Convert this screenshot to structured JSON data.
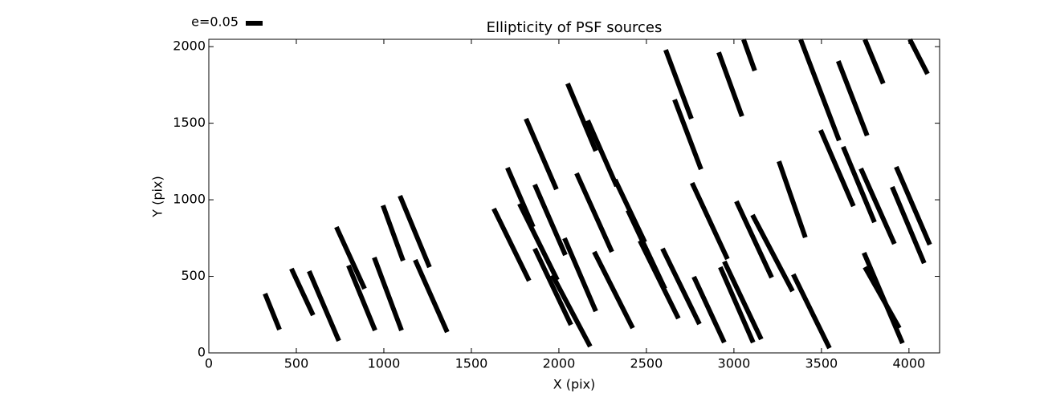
{
  "chart_data": {
    "type": "segments",
    "title": "Ellipticity of PSF sources",
    "x_label": "X (pix)",
    "y_label": "Y (pix)",
    "legend_label": "e=0.05",
    "color": "#000000",
    "x_start": [
      321,
      472,
      573,
      729,
      798,
      945,
      995,
      1092,
      1179,
      1628,
      1706,
      1812,
      1775,
      1862,
      1862,
      1963,
      2032,
      2050,
      2101,
      2165,
      2202,
      2321,
      2394,
      2463,
      2592,
      2610,
      2661,
      2761,
      2771,
      2913,
      2922,
      2945,
      3014,
      3106,
      3055,
      3257,
      3339,
      3381,
      3495,
      3596,
      3624,
      3725,
      3748,
      3743,
      3748,
      3904,
      3927,
      4005
    ],
    "y_start": [
      387,
      550,
      534,
      822,
      571,
      623,
      963,
      1026,
      607,
      942,
      1209,
      1529,
      974,
      1099,
      681,
      508,
      749,
      1759,
      1173,
      1518,
      660,
      1131,
      932,
      733,
      681,
      1979,
      1654,
      1110,
      497,
      1963,
      560,
      597,
      990,
      901,
      2047,
      1251,
      513,
      2047,
      1455,
      1906,
      1346,
      1204,
      2047,
      654,
      560,
      1084,
      1215,
      2047
    ],
    "x_end": [
      404,
      596,
      743,
      890,
      950,
      1101,
      1110,
      1261,
      1362,
      1830,
      1853,
      1986,
      1991,
      2037,
      2069,
      2179,
      2211,
      2211,
      2303,
      2330,
      2422,
      2491,
      2606,
      2683,
      2803,
      2757,
      2812,
      2963,
      2945,
      3046,
      3110,
      3156,
      3216,
      3335,
      3119,
      3408,
      3546,
      3601,
      3683,
      3761,
      3803,
      3917,
      3853,
      3963,
      3945,
      4087,
      4119,
      4106
    ],
    "y_end": [
      152,
      246,
      79,
      419,
      147,
      147,
      602,
      560,
      136,
      471,
      822,
      1068,
      476,
      639,
      183,
      42,
      272,
      1319,
      660,
      1089,
      162,
      723,
      419,
      225,
      188,
      1529,
      1199,
      613,
      68,
      1545,
      68,
      89,
      492,
      403,
      1843,
      754,
      31,
      1387,
      958,
      1419,
      853,
      712,
      1759,
      63,
      162,
      586,
      707,
      1822
    ],
    "xlim": [
      0,
      4175
    ],
    "ylim": [
      0,
      2048
    ],
    "xticks": [
      0,
      500,
      1000,
      1500,
      2000,
      2500,
      3000,
      3500,
      4000
    ],
    "yticks": [
      0,
      500,
      1000,
      1500,
      2000
    ]
  }
}
